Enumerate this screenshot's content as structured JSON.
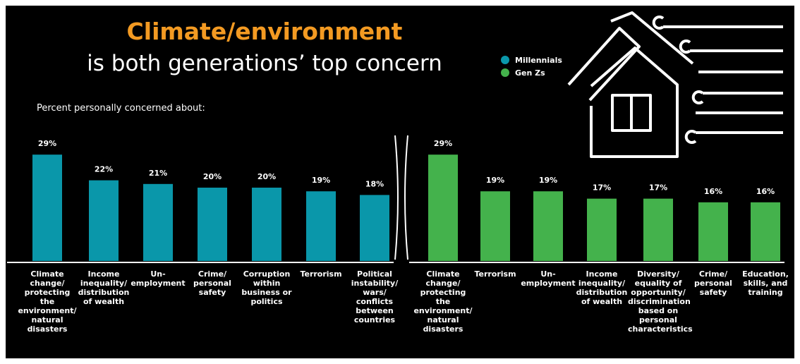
{
  "chart_data": [
    {
      "type": "bar",
      "title": "Climate/environment",
      "subtitle": "is both generations’ top concern",
      "note": "Percent personally concerned about:",
      "categories": [
        "Climate change/ protecting the environment/ natural disasters",
        "Income inequality/ distribution of wealth",
        "Un- employment",
        "Crime/ personal safety",
        "Corruption within business or politics",
        "Terrorism",
        "Political instability/ wars/ conflicts between countries"
      ],
      "series": [
        {
          "name": "Millennials",
          "color": "#0a97aa",
          "values": [
            29,
            22,
            21,
            20,
            20,
            19,
            18
          ],
          "value_labels": [
            "29%",
            "22%",
            "21%",
            "20%",
            "20%",
            "19%",
            "18%"
          ]
        }
      ]
    },
    {
      "type": "bar",
      "categories": [
        "Climate change/ protecting the environment/ natural disasters",
        "Terrorism",
        "Un- employment",
        "Income inequality/ distribution of wealth",
        "Diversity/ equality of opportunity/ discrimination based on personal characteristics",
        "Crime/ personal safety",
        "Education, skills, and training"
      ],
      "series": [
        {
          "name": "Gen Zs",
          "color": "#44b24c",
          "values": [
            29,
            19,
            19,
            17,
            17,
            16,
            16
          ],
          "value_labels": [
            "29%",
            "19%",
            "19%",
            "17%",
            "17%",
            "16%",
            "16%"
          ]
        }
      ]
    }
  ]
}
